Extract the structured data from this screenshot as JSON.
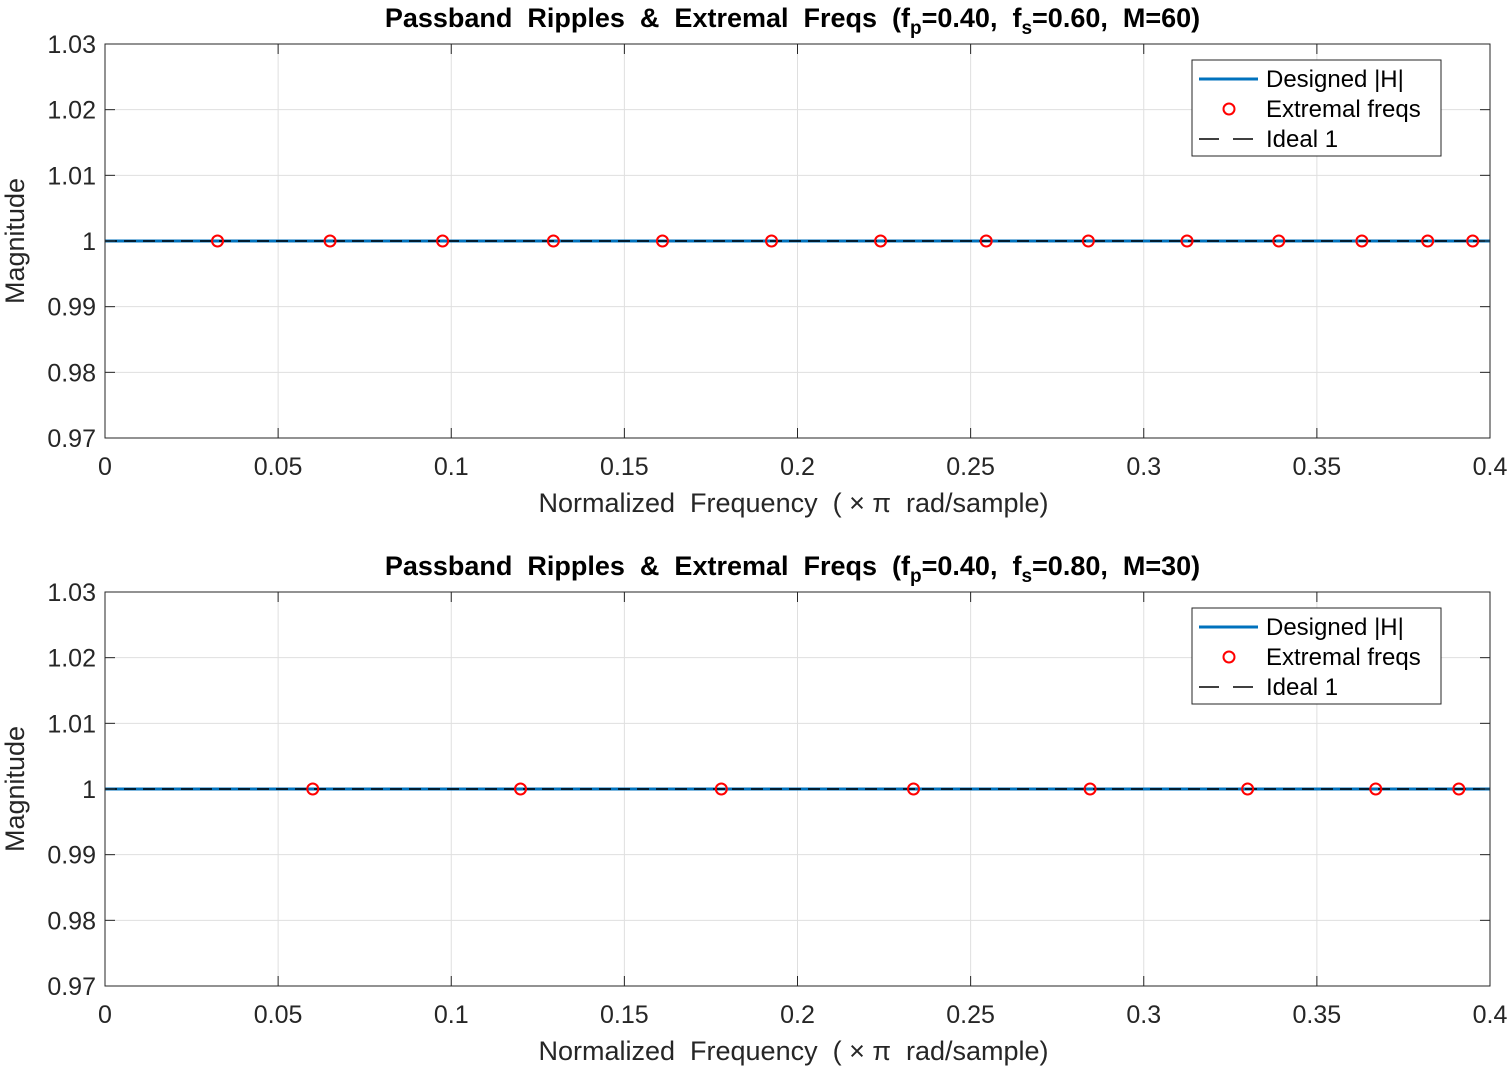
{
  "chart_data": [
    {
      "type": "line",
      "title": {
        "prefix": "Passband  Ripples  &  Extremal  Freqs  (f",
        "sub_p": "p",
        "mid": "=0.40,  f",
        "sub_s": "s",
        "suffix": "=0.60,  M=60)"
      },
      "xlabel": "Normalized  Frequency  ( × π  rad/sample)",
      "ylabel": "Magnitude",
      "xlim": [
        0,
        0.4
      ],
      "ylim": [
        0.97,
        1.03
      ],
      "xticks": [
        0,
        0.05,
        0.1,
        0.15,
        0.2,
        0.25,
        0.3,
        0.35,
        0.4
      ],
      "xtick_labels": [
        "0",
        "0.05",
        "0.1",
        "0.15",
        "0.2",
        "0.25",
        "0.3",
        "0.35",
        "0.4"
      ],
      "yticks": [
        0.97,
        0.98,
        0.99,
        1,
        1.01,
        1.02,
        1.03
      ],
      "ytick_labels": [
        "0.97",
        "0.98",
        "0.99",
        "1",
        "1.01",
        "1.02",
        "1.03"
      ],
      "grid": true,
      "legend_position": "top-right",
      "series": [
        {
          "name": "Designed |H|",
          "kind": "line",
          "color": "#0072BD",
          "x": [
            0,
            0.4
          ],
          "y": [
            1,
            1
          ]
        },
        {
          "name": "Extremal freqs",
          "kind": "markers",
          "color": "#FF0000",
          "x": [
            0.0325,
            0.065,
            0.0975,
            0.1295,
            0.161,
            0.1925,
            0.224,
            0.2545,
            0.284,
            0.3125,
            0.339,
            0.363,
            0.382,
            0.395
          ],
          "y": [
            1,
            1,
            1,
            1,
            1,
            1,
            1,
            1,
            1,
            1,
            1,
            1,
            1,
            1
          ]
        },
        {
          "name": "Ideal 1",
          "kind": "dashed",
          "color": "#000000",
          "x": [
            0,
            0.4
          ],
          "y": [
            1,
            1
          ]
        }
      ]
    },
    {
      "type": "line",
      "title": {
        "prefix": "Passband  Ripples  &  Extremal  Freqs  (f",
        "sub_p": "p",
        "mid": "=0.40,  f",
        "sub_s": "s",
        "suffix": "=0.80,  M=30)"
      },
      "xlabel": "Normalized  Frequency  ( × π  rad/sample)",
      "ylabel": "Magnitude",
      "xlim": [
        0,
        0.4
      ],
      "ylim": [
        0.97,
        1.03
      ],
      "xticks": [
        0,
        0.05,
        0.1,
        0.15,
        0.2,
        0.25,
        0.3,
        0.35,
        0.4
      ],
      "xtick_labels": [
        "0",
        "0.05",
        "0.1",
        "0.15",
        "0.2",
        "0.25",
        "0.3",
        "0.35",
        "0.4"
      ],
      "yticks": [
        0.97,
        0.98,
        0.99,
        1,
        1.01,
        1.02,
        1.03
      ],
      "ytick_labels": [
        "0.97",
        "0.98",
        "0.99",
        "1",
        "1.01",
        "1.02",
        "1.03"
      ],
      "grid": true,
      "legend_position": "top-right",
      "series": [
        {
          "name": "Designed |H|",
          "kind": "line",
          "color": "#0072BD",
          "x": [
            0,
            0.4
          ],
          "y": [
            1,
            1
          ]
        },
        {
          "name": "Extremal freqs",
          "kind": "markers",
          "color": "#FF0000",
          "x": [
            0.06,
            0.12,
            0.178,
            0.2335,
            0.2845,
            0.33,
            0.367,
            0.391
          ],
          "y": [
            1,
            1,
            1,
            1,
            1,
            1,
            1,
            1
          ]
        },
        {
          "name": "Ideal 1",
          "kind": "dashed",
          "color": "#000000",
          "x": [
            0,
            0.4
          ],
          "y": [
            1,
            1
          ]
        }
      ]
    }
  ]
}
